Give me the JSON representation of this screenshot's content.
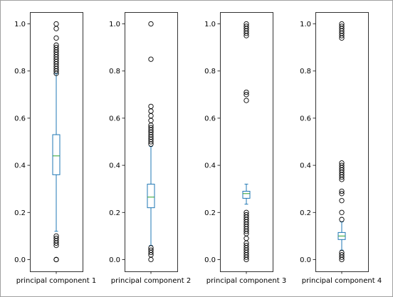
{
  "chart_data": {
    "type": "box",
    "title": "",
    "ylabel": "",
    "ylim": [
      -0.05,
      1.05
    ],
    "grid": false,
    "yticks": [
      0.0,
      0.2,
      0.4,
      0.6,
      0.8,
      1.0
    ],
    "ytick_labels": [
      "0.0",
      "0.2",
      "0.4",
      "0.6",
      "0.8",
      "1.0"
    ],
    "box_color": "#1f77b4",
    "median_color": "#2ca02c",
    "flier_color": "#000000",
    "panels": [
      {
        "label": "principal component 1",
        "whisker_low": 0.12,
        "q1": 0.36,
        "median": 0.44,
        "q3": 0.53,
        "whisker_high": 0.79,
        "fliers": [
          0.0,
          0.0,
          0.06,
          0.07,
          0.08,
          0.09,
          0.1,
          0.79,
          0.8,
          0.81,
          0.82,
          0.83,
          0.84,
          0.85,
          0.86,
          0.87,
          0.88,
          0.89,
          0.9,
          0.91,
          0.94,
          0.98,
          1.0
        ]
      },
      {
        "label": "principal component 2",
        "whisker_low": 0.06,
        "q1": 0.22,
        "median": 0.265,
        "q3": 0.32,
        "whisker_high": 0.48,
        "fliers": [
          0.0,
          0.02,
          0.03,
          0.04,
          0.05,
          0.49,
          0.5,
          0.51,
          0.52,
          0.53,
          0.54,
          0.55,
          0.56,
          0.57,
          0.59,
          0.61,
          0.63,
          0.65,
          0.85,
          1.0
        ]
      },
      {
        "label": "principal component 3",
        "whisker_low": 0.235,
        "q1": 0.26,
        "median": 0.28,
        "q3": 0.29,
        "whisker_high": 0.32,
        "fliers": [
          0.0,
          0.01,
          0.02,
          0.03,
          0.04,
          0.05,
          0.06,
          0.07,
          0.09,
          0.11,
          0.12,
          0.13,
          0.14,
          0.15,
          0.16,
          0.17,
          0.18,
          0.19,
          0.2,
          0.675,
          0.7,
          0.71,
          0.95,
          0.96,
          0.97,
          0.98,
          0.99,
          1.0
        ]
      },
      {
        "label": "principal component 4",
        "whisker_low": 0.04,
        "q1": 0.085,
        "median": 0.1,
        "q3": 0.115,
        "whisker_high": 0.16,
        "fliers": [
          0.0,
          0.01,
          0.02,
          0.03,
          0.17,
          0.2,
          0.25,
          0.28,
          0.29,
          0.34,
          0.35,
          0.36,
          0.37,
          0.38,
          0.39,
          0.4,
          0.41,
          0.94,
          0.95,
          0.96,
          0.97,
          0.98,
          0.99,
          1.0
        ]
      }
    ]
  }
}
